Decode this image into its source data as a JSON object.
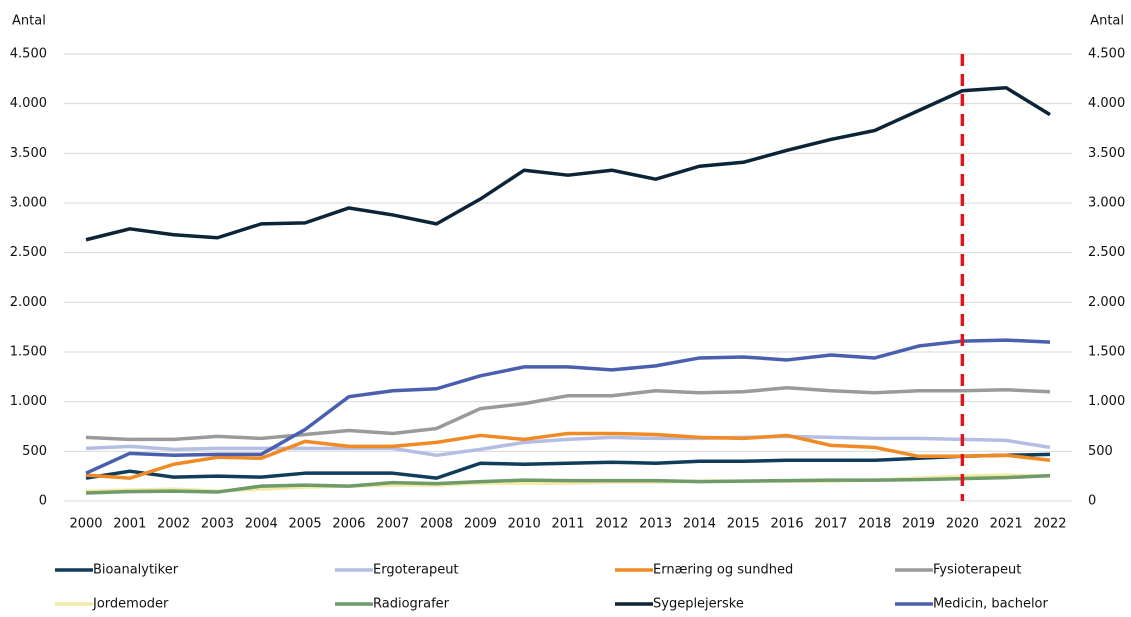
{
  "chart_data": {
    "type": "line",
    "ylabel": "Antal",
    "y2label": "Antal",
    "x": [
      2000,
      2001,
      2002,
      2003,
      2004,
      2005,
      2006,
      2007,
      2008,
      2009,
      2010,
      2011,
      2012,
      2013,
      2014,
      2015,
      2016,
      2017,
      2018,
      2019,
      2020,
      2021,
      2022
    ],
    "xticks": [
      2000,
      2001,
      2002,
      2003,
      2004,
      2005,
      2006,
      2007,
      2008,
      2009,
      2010,
      2011,
      2012,
      2013,
      2014,
      2015,
      2016,
      2017,
      2018,
      2019,
      2020,
      2021,
      2022
    ],
    "xlim": [
      2000,
      2022
    ],
    "ylim": [
      0,
      4500
    ],
    "yticks": [
      0,
      500,
      {
        "value": 1000,
        "label": "1.000"
      },
      {
        "value": 1500,
        "label": "1.500"
      },
      {
        "value": 2000,
        "label": "2.000"
      },
      {
        "value": 2500,
        "label": "2.500"
      },
      {
        "value": 3000,
        "label": "3.000"
      },
      {
        "value": 3500,
        "label": "3.500"
      },
      {
        "value": 4000,
        "label": "4.000"
      },
      {
        "value": 4500,
        "label": "4.500"
      }
    ],
    "grid": true,
    "vline": {
      "x": 2020,
      "color": "#e0141e"
    },
    "series": [
      {
        "name": "Bioanalytiker",
        "color": "#0f3d5a",
        "values": [
          230,
          300,
          240,
          250,
          240,
          280,
          280,
          280,
          230,
          380,
          370,
          380,
          390,
          380,
          400,
          400,
          410,
          410,
          410,
          430,
          450,
          460,
          470
        ]
      },
      {
        "name": "Ergoterapeut",
        "color": "#b4bee3",
        "values": [
          530,
          550,
          520,
          530,
          530,
          530,
          530,
          530,
          460,
          520,
          590,
          620,
          640,
          630,
          630,
          640,
          650,
          640,
          630,
          630,
          620,
          610,
          540
        ]
      },
      {
        "name": "Ernæring og sundhed",
        "color": "#f08a24",
        "values": [
          260,
          230,
          370,
          440,
          430,
          600,
          550,
          550,
          590,
          660,
          620,
          680,
          680,
          670,
          640,
          630,
          660,
          560,
          540,
          450,
          450,
          460,
          410
        ]
      },
      {
        "name": "Fysioterapeut",
        "color": "#9a9a9a",
        "values": [
          640,
          620,
          620,
          650,
          630,
          670,
          710,
          680,
          730,
          930,
          980,
          1060,
          1060,
          1110,
          1090,
          1100,
          1140,
          1110,
          1090,
          1110,
          1110,
          1120,
          1100
        ]
      },
      {
        "name": "Jordemoder",
        "color": "#f2eba6",
        "values": [
          100,
          110,
          120,
          100,
          120,
          140,
          150,
          160,
          160,
          180,
          180,
          180,
          190,
          190,
          200,
          200,
          200,
          200,
          210,
          230,
          250,
          260,
          250
        ]
      },
      {
        "name": "Radiografer",
        "color": "#6f9a6a",
        "values": [
          80,
          95,
          100,
          90,
          150,
          160,
          150,
          185,
          175,
          195,
          210,
          205,
          205,
          205,
          195,
          200,
          205,
          210,
          210,
          215,
          225,
          235,
          255
        ]
      },
      {
        "name": "Sygeplejerske",
        "color": "#0c2437",
        "values": [
          2630,
          2740,
          2680,
          2650,
          2790,
          2800,
          2950,
          2880,
          2790,
          3040,
          3330,
          3280,
          3330,
          3240,
          3370,
          3410,
          3530,
          3640,
          3730,
          3930,
          4130,
          4160,
          3890
        ]
      },
      {
        "name": "Medicin, bachelor",
        "color": "#4a5fad",
        "values": [
          280,
          480,
          460,
          470,
          470,
          720,
          1050,
          1110,
          1130,
          1260,
          1350,
          1350,
          1320,
          1360,
          1440,
          1450,
          1420,
          1470,
          1440,
          1560,
          1610,
          1620,
          1600
        ]
      }
    ]
  }
}
